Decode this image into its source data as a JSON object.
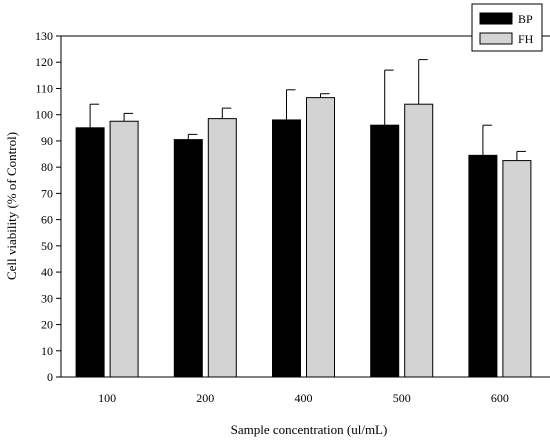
{
  "chart_data": {
    "type": "bar",
    "categories": [
      "100",
      "200",
      "400",
      "500",
      "600"
    ],
    "series": [
      {
        "name": "BP",
        "color": "#000000",
        "values": [
          95,
          90.5,
          98,
          96,
          84.5
        ],
        "errors": [
          9,
          2,
          11.5,
          21,
          11.5
        ]
      },
      {
        "name": "FH",
        "color": "#d3d3d3",
        "values": [
          97.5,
          98.5,
          106.5,
          104,
          82.5
        ],
        "errors": [
          3,
          4,
          1.5,
          17,
          3.5
        ]
      }
    ],
    "title": "",
    "xlabel": "Sample concentration (ul/mL)",
    "ylabel": "Cell viability (% of Control)",
    "ylim": [
      0,
      130
    ],
    "yticks": [
      0,
      10,
      20,
      30,
      40,
      50,
      60,
      70,
      80,
      90,
      100,
      110,
      120,
      130
    ],
    "grid": false,
    "legend_position": "top-right"
  }
}
